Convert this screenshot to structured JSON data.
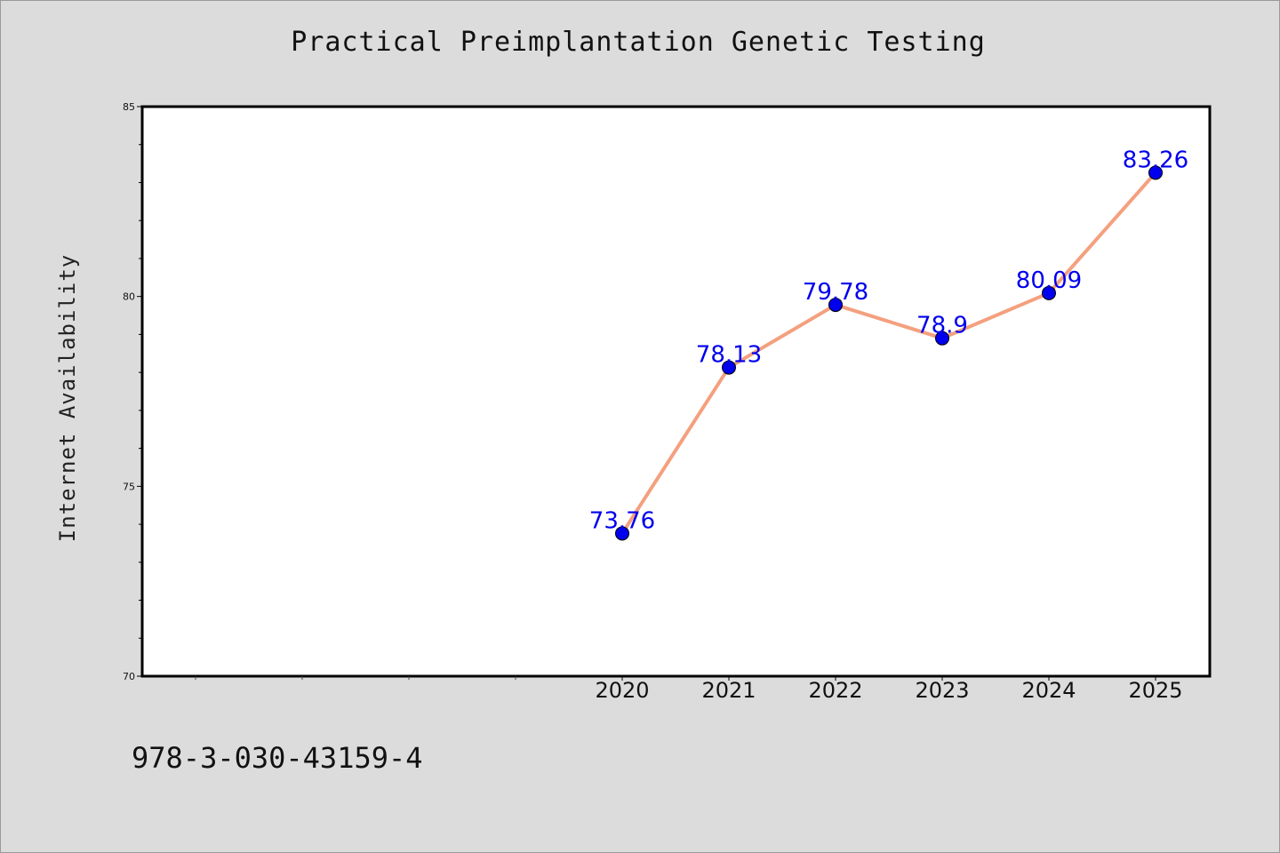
{
  "chart_data": {
    "type": "line",
    "title": "Practical Preimplantation Genetic Testing",
    "ylabel": "Internet Availability",
    "xlabel": "",
    "ylim": [
      70,
      85
    ],
    "yticks": [
      70,
      75,
      80,
      85
    ],
    "x": [
      "2020",
      "2021",
      "2022",
      "2023",
      "2024",
      "2025"
    ],
    "values": [
      73.76,
      78.13,
      79.78,
      78.9,
      80.09,
      83.26
    ],
    "data_labels": [
      "73.76",
      "78.13",
      "79.78",
      "78.9",
      "80.09",
      "83.26"
    ],
    "grid": false,
    "line_color": "#f4a07e",
    "marker_color": "#0000ee"
  },
  "footnote": "978-3-030-43159-4"
}
